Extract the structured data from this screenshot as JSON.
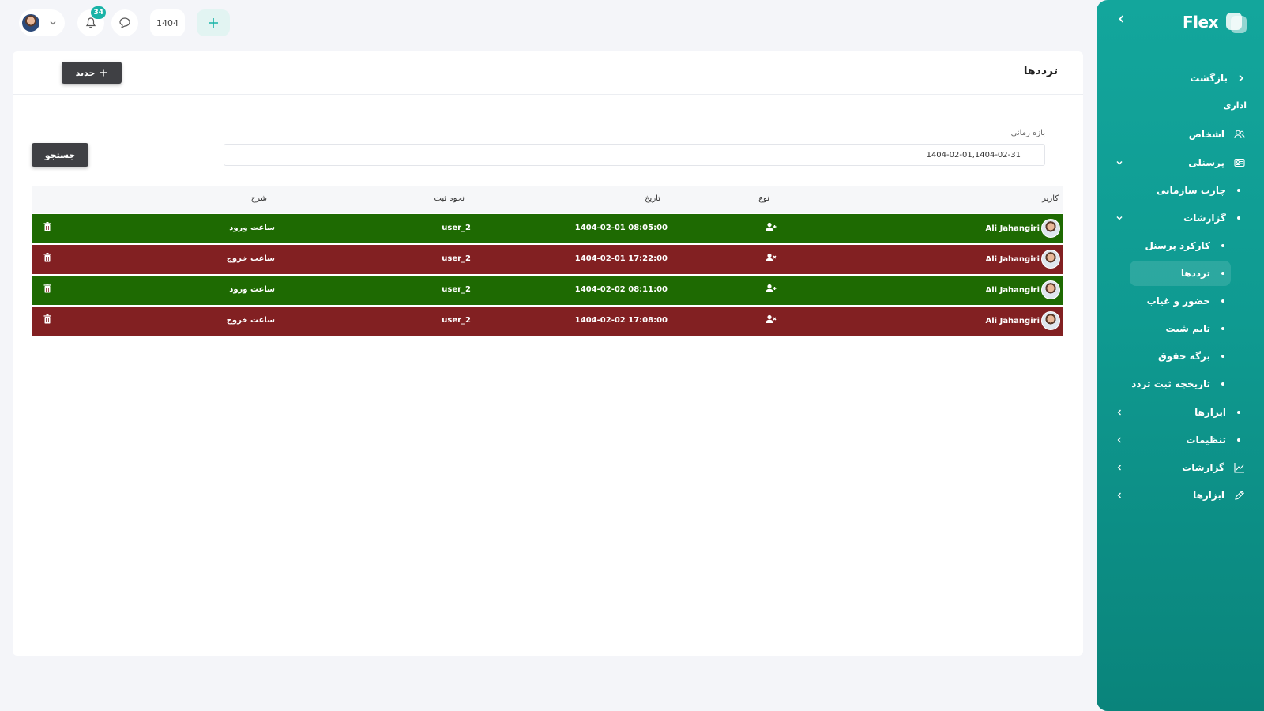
{
  "topbar": {
    "year_label": "1404",
    "notif_count": "34",
    "add_icon": "plus-icon",
    "chat_icon": "chat-icon",
    "bell_icon": "bell-icon"
  },
  "sidebar": {
    "brand": "Flex",
    "back_label": "بازگشت",
    "section_label": "اداری",
    "items": [
      {
        "label": "اشخاص",
        "icon": "people-icon"
      },
      {
        "label": "پرسنلی",
        "icon": "id-card-icon"
      },
      {
        "label": "چارت سازمانی"
      },
      {
        "label": "گزارشات"
      },
      {
        "label": "کارکرد پرسنل"
      },
      {
        "label": "ترددها"
      },
      {
        "label": "حضور و غیاب"
      },
      {
        "label": "تایم شیت"
      },
      {
        "label": "برگه حقوق"
      },
      {
        "label": "تاریخچه ثبت تردد"
      },
      {
        "label": "ابزارها"
      },
      {
        "label": "تنظیمات"
      },
      {
        "label": "گزارشات",
        "icon": "chart-line-icon"
      },
      {
        "label": "ابزارها",
        "icon": "pencil-icon"
      }
    ]
  },
  "page": {
    "title": "ترددها",
    "new_button": "جدید",
    "filter_label": "بازه زمانی",
    "filter_value": "1404-02-01,1404-02-31",
    "search_button": "جستجو"
  },
  "table": {
    "headers": {
      "user": "کاربر",
      "type": "نوع",
      "date": "تاریخ",
      "method": "نحوه ثبت",
      "description": "شرح"
    },
    "rows": [
      {
        "user": "Ali Jahangiri",
        "type": "entry",
        "date": "1404-02-01 08:05:00",
        "method": "user_2",
        "description": "ساعت ورود",
        "color": "#1e6a02"
      },
      {
        "user": "Ali Jahangiri",
        "type": "exit",
        "date": "1404-02-01 17:22:00",
        "method": "user_2",
        "description": "ساعت خروج",
        "color": "#822022"
      },
      {
        "user": "Ali Jahangiri",
        "type": "entry",
        "date": "1404-02-02 08:11:00",
        "method": "user_2",
        "description": "ساعت ورود",
        "color": "#1e6a02"
      },
      {
        "user": "Ali Jahangiri",
        "type": "exit",
        "date": "1404-02-02 17:08:00",
        "method": "user_2",
        "description": "ساعت خروج",
        "color": "#822022"
      }
    ]
  }
}
